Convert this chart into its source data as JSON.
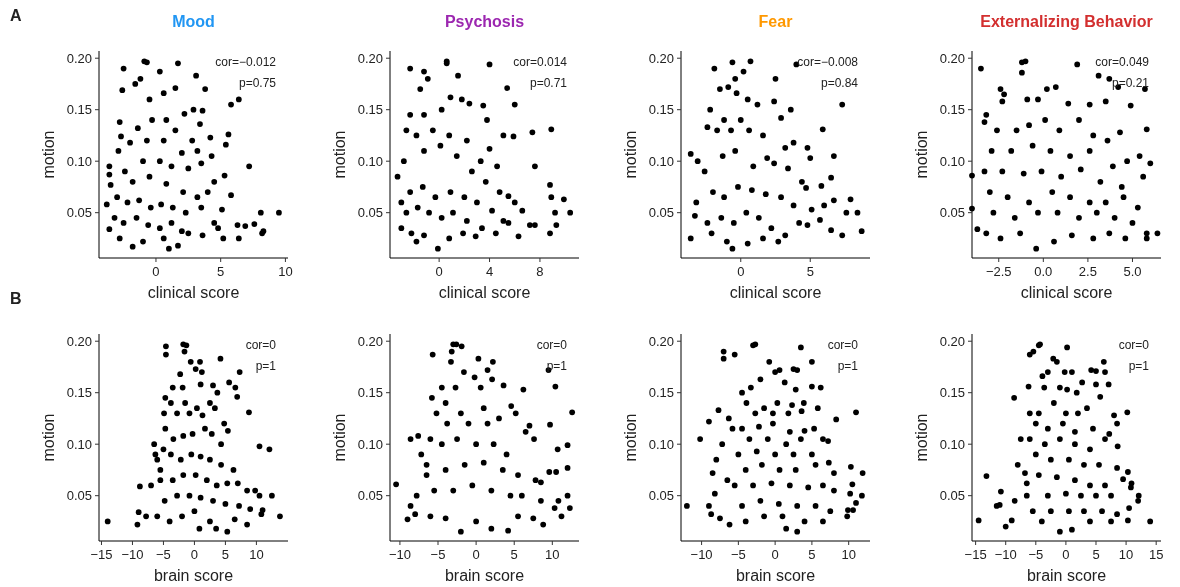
{
  "chart_data": [
    {
      "type": "scatter",
      "title": "Mood",
      "xlabel": "clinical score",
      "ylabel": "motion",
      "marker": "circle",
      "xlim": [
        -4.4,
        10.2
      ],
      "ylim": [
        0.006,
        0.207
      ],
      "xticks": [
        0,
        5,
        10
      ],
      "yticks": [
        {
          "value": 0.05,
          "label": "0.05"
        },
        {
          "value": 0.1,
          "label": "0.10"
        },
        {
          "value": 0.15,
          "label": "0.15"
        },
        {
          "value": 0.2,
          "label": "0.20"
        }
      ],
      "annotations": [
        "A",
        "cor=−0.012",
        "p=0.75"
      ],
      "series": [
        {
          "color": "#000000",
          "x": [
            -2.5,
            -0.9,
            -0.7,
            0.3,
            1.7,
            3.1,
            3.8,
            6.4,
            5.8,
            7.2,
            9.5,
            8.1,
            8.3,
            8.2,
            7.6,
            6.9,
            6.3,
            6.4,
            5.2,
            -3.8,
            -3.6,
            -3.6,
            -3.5,
            -3.6,
            1.0,
            1.7,
            -1.8,
            5.6,
            5.4,
            4.2,
            4.3,
            4.5,
            5.3,
            5.8,
            5.1,
            2.9,
            3.4,
            3.6,
            2.2,
            1.5,
            0.6,
            -0.5,
            -1.6,
            -1.2,
            -2.6,
            -2.8,
            -2.7,
            -2.9,
            -1.4,
            -0.3,
            0.8,
            1.5,
            2.8,
            3.2,
            2.0,
            0.6,
            -0.7,
            -2.0,
            -1.0,
            0.3,
            1.2,
            2.5,
            3.5,
            -2.4,
            -1.8,
            -0.5,
            0.8,
            2.1,
            3.2,
            4.0,
            -3.0,
            -2.2,
            -1.3,
            -0.4,
            0.4,
            1.3,
            2.3,
            3.5,
            4.5,
            -3.2,
            -2.5,
            -1.5,
            -0.6,
            0.3,
            1.2,
            2.5,
            3.6,
            -2.8,
            -1.0,
            0.6,
            2.0,
            4.8
          ],
          "values": [
            0.19,
            0.197,
            0.196,
            0.187,
            0.195,
            0.183,
            0.17,
            0.16,
            0.155,
            0.095,
            0.05,
            0.05,
            0.032,
            0.03,
            0.039,
            0.037,
            0.038,
            0.025,
            0.025,
            0.058,
            0.095,
            0.087,
            0.077,
            0.034,
            0.015,
            0.018,
            0.017,
            0.126,
            0.116,
            0.123,
            0.105,
            0.08,
            0.086,
            0.067,
            0.053,
            0.15,
            0.136,
            0.149,
            0.146,
            0.171,
            0.166,
            0.16,
            0.175,
            0.18,
            0.169,
            0.138,
            0.124,
            0.11,
            0.132,
            0.14,
            0.14,
            0.13,
            0.12,
            0.11,
            0.108,
            0.12,
            0.12,
            0.118,
            0.1,
            0.1,
            0.095,
            0.093,
            0.098,
            0.09,
            0.08,
            0.085,
            0.078,
            0.07,
            0.065,
            0.07,
            0.065,
            0.06,
            0.062,
            0.055,
            0.058,
            0.055,
            0.05,
            0.055,
            0.04,
            0.045,
            0.04,
            0.045,
            0.038,
            0.035,
            0.04,
            0.03,
            0.028,
            0.025,
            0.022,
            0.025,
            0.032,
            0.035
          ]
        }
      ]
    },
    {
      "type": "scatter",
      "title": "Psychosis",
      "xlabel": "clinical score",
      "ylabel": "motion",
      "marker": "circle",
      "xlim": [
        -3.9,
        11.1
      ],
      "ylim": [
        0.006,
        0.207
      ],
      "xticks": [
        0,
        4,
        8
      ],
      "yticks": [
        {
          "value": 0.05,
          "label": "0.05"
        },
        {
          "value": 0.1,
          "label": "0.10"
        },
        {
          "value": 0.15,
          "label": "0.15"
        },
        {
          "value": 0.2,
          "label": "0.20"
        }
      ],
      "annotations": [
        "cor=0.014",
        "p=0.71"
      ],
      "series": [
        {
          "color": "#000000",
          "x": [
            -2.3,
            -1.2,
            0.6,
            0.6,
            4.0,
            1.5,
            -0.9,
            5.4,
            -1.5,
            0.9,
            2.4,
            3.5,
            6.0,
            1.8,
            -2.3,
            3.8,
            -1.2,
            0.2,
            7.4,
            8.9,
            5.9,
            5.1,
            4.0,
            -2.6,
            -1.8,
            -0.5,
            0.8,
            2.2,
            3.3,
            4.6,
            7.6,
            -3.3,
            -2.8,
            -1.2,
            0.1,
            1.4,
            2.6,
            3.7,
            4.8,
            5.5,
            8.8,
            8.9,
            9.9,
            10.4,
            9.2,
            9.3,
            8.8,
            7.6,
            7.2,
            6.6,
            6.0,
            6.3,
            5.1,
            4.2,
            3.0,
            2.0,
            0.9,
            -0.3,
            -1.3,
            -2.3,
            -3.0,
            -2.6,
            -1.7,
            -0.8,
            0.2,
            1.1,
            2.2,
            3.4,
            4.5,
            -3.0,
            -2.2,
            -1.2,
            -0.1,
            0.8,
            1.9,
            2.9,
            -1.8,
            5.5
          ],
          "values": [
            0.19,
            0.187,
            0.197,
            0.195,
            0.194,
            0.183,
            0.18,
            0.171,
            0.17,
            0.162,
            0.156,
            0.154,
            0.155,
            0.16,
            0.145,
            0.14,
            0.145,
            0.15,
            0.128,
            0.131,
            0.124,
            0.125,
            0.112,
            0.13,
            0.125,
            0.13,
            0.125,
            0.12,
            0.1,
            0.095,
            0.095,
            0.085,
            0.1,
            0.11,
            0.115,
            0.105,
            0.09,
            0.08,
            0.07,
            0.066,
            0.077,
            0.065,
            0.063,
            0.05,
            0.05,
            0.038,
            0.03,
            0.038,
            0.038,
            0.052,
            0.06,
            0.027,
            0.042,
            0.052,
            0.06,
            0.065,
            0.07,
            0.065,
            0.075,
            0.07,
            0.06,
            0.05,
            0.055,
            0.05,
            0.045,
            0.05,
            0.042,
            0.035,
            0.03,
            0.035,
            0.03,
            0.028,
            0.015,
            0.025,
            0.03,
            0.027,
            0.022,
            0.04
          ]
        }
      ]
    },
    {
      "type": "scatter",
      "title": "Fear",
      "xlabel": "clinical score",
      "ylabel": "motion",
      "marker": "circle",
      "xlim": [
        -4.3,
        9.3
      ],
      "ylim": [
        0.006,
        0.207
      ],
      "xticks": [
        0,
        5
      ],
      "yticks": [
        {
          "value": 0.05,
          "label": "0.05"
        },
        {
          "value": 0.1,
          "label": "0.10"
        },
        {
          "value": 0.15,
          "label": "0.15"
        },
        {
          "value": 0.2,
          "label": "0.20"
        }
      ],
      "annotations": [
        "cor=−0.008",
        "p=0.84"
      ],
      "series": [
        {
          "color": "#000000",
          "x": [
            -3.6,
            -1.9,
            -0.6,
            0.7,
            4.0,
            0.2,
            -0.4,
            2.5,
            -1.5,
            -0.9,
            -0.3,
            0.5,
            2.4,
            1.2,
            3.6,
            7.3,
            -2.2,
            -1.2,
            0.0,
            2.9,
            -2.4,
            -1.7,
            -0.7,
            0.6,
            1.6,
            3.2,
            3.8,
            5.9,
            5.0,
            4.8,
            6.7,
            -3.1,
            -2.6,
            -1.3,
            -0.4,
            0.9,
            1.9,
            2.4,
            3.4,
            4.4,
            4.7,
            5.8,
            6.5,
            -3.2,
            -2.0,
            -1.2,
            -0.2,
            0.8,
            1.8,
            2.9,
            3.8,
            5.1,
            6.0,
            6.7,
            7.9,
            8.4,
            7.6,
            8.7,
            7.3,
            6.5,
            5.7,
            4.8,
            -3.6,
            -3.3,
            -2.4,
            -1.4,
            -0.5,
            0.4,
            1.3,
            2.2,
            3.2,
            -2.1,
            -1.0,
            -0.6,
            0.5,
            1.6,
            2.7,
            4.2
          ],
          "values": [
            0.107,
            0.19,
            0.196,
            0.197,
            0.194,
            0.187,
            0.18,
            0.18,
            0.17,
            0.172,
            0.166,
            0.16,
            0.158,
            0.155,
            0.15,
            0.155,
            0.15,
            0.14,
            0.14,
            0.142,
            0.133,
            0.13,
            0.13,
            0.13,
            0.125,
            0.113,
            0.118,
            0.131,
            0.103,
            0.113,
            0.105,
            0.1,
            0.09,
            0.105,
            0.11,
            0.095,
            0.103,
            0.098,
            0.093,
            0.08,
            0.074,
            0.076,
            0.084,
            0.06,
            0.07,
            0.065,
            0.075,
            0.072,
            0.068,
            0.065,
            0.057,
            0.053,
            0.057,
            0.062,
            0.063,
            0.05,
            0.05,
            0.032,
            0.028,
            0.033,
            0.043,
            0.038,
            0.025,
            0.047,
            0.04,
            0.045,
            0.04,
            0.05,
            0.045,
            0.035,
            0.028,
            0.03,
            0.022,
            0.015,
            0.02,
            0.025,
            0.022,
            0.04
          ]
        }
      ]
    },
    {
      "type": "scatter",
      "title": "Externalizing Behavior",
      "xlabel": "clinical score",
      "ylabel": "motion",
      "marker": "circle",
      "xlim": [
        -4.0,
        6.6
      ],
      "ylim": [
        0.006,
        0.207
      ],
      "xticks": [
        -2.5,
        {
          "value": 0,
          "label": "0.0"
        },
        2.5,
        {
          "value": 5,
          "label": "5.0"
        }
      ],
      "yticks": [
        {
          "value": 0.05,
          "label": "0.05"
        },
        {
          "value": 0.1,
          "label": "0.10"
        },
        {
          "value": 0.15,
          "label": "0.15"
        },
        {
          "value": 0.2,
          "label": "0.20"
        }
      ],
      "annotations": [
        "cor=0.049",
        "p=0.21"
      ],
      "series": [
        {
          "color": "#000000",
          "x": [
            -4.0,
            -4.0,
            -3.7,
            -3.5,
            -3.3,
            -2.4,
            -2.2,
            -2.3,
            -1.2,
            -1.0,
            -1.2,
            -0.9,
            -0.3,
            0.2,
            0.7,
            1.4,
            1.9,
            3.1,
            3.7,
            4.2,
            3.5,
            4.9,
            5.7,
            2.6,
            -3.2,
            -2.6,
            -1.5,
            -0.8,
            0.1,
            0.9,
            2.0,
            2.8,
            3.6,
            4.3,
            5.8,
            6.0,
            5.4,
            4.7,
            3.9,
            2.6,
            1.5,
            0.4,
            -0.6,
            -1.8,
            -2.9,
            -3.3,
            -2.3,
            -1.1,
            -0.1,
            1.0,
            2.1,
            3.2,
            4.4,
            5.6,
            -3.0,
            -2.0,
            -0.8,
            0.5,
            1.5,
            2.6,
            3.5,
            4.5,
            5.3,
            -2.8,
            -1.6,
            -0.3,
            0.8,
            2.0,
            3.0,
            4.0,
            5.0,
            5.8,
            6.4,
            -3.2,
            -2.4,
            -1.3,
            -0.4,
            0.6,
            1.6,
            2.8,
            3.7,
            4.6,
            5.8
          ],
          "values": [
            0.086,
            0.054,
            0.034,
            0.19,
            0.138,
            0.17,
            0.165,
            0.158,
            0.196,
            0.197,
            0.186,
            0.16,
            0.16,
            0.17,
            0.172,
            0.156,
            0.194,
            0.183,
            0.18,
            0.172,
            0.158,
            0.154,
            0.17,
            0.155,
            0.145,
            0.13,
            0.13,
            0.135,
            0.14,
            0.13,
            0.14,
            0.125,
            0.12,
            0.128,
            0.131,
            0.098,
            0.105,
            0.1,
            0.095,
            0.11,
            0.105,
            0.11,
            0.115,
            0.11,
            0.11,
            0.09,
            0.09,
            0.088,
            0.09,
            0.085,
            0.092,
            0.08,
            0.075,
            0.085,
            0.07,
            0.065,
            0.06,
            0.07,
            0.065,
            0.06,
            0.06,
            0.065,
            0.055,
            0.05,
            0.045,
            0.05,
            0.05,
            0.045,
            0.05,
            0.045,
            0.04,
            0.03,
            0.03,
            0.03,
            0.025,
            0.03,
            0.015,
            0.022,
            0.028,
            0.025,
            0.03,
            0.025,
            0.025
          ]
        }
      ]
    },
    {
      "type": "scatter",
      "xlabel": "brain score",
      "ylabel": "motion",
      "marker": "circle",
      "xlim": [
        -15.4,
        15.1
      ],
      "ylim": [
        0.006,
        0.207
      ],
      "xticks": [
        -15,
        -10,
        -5,
        0,
        5,
        10
      ],
      "yticks": [
        {
          "value": 0.05,
          "label": "0.05"
        },
        {
          "value": 0.1,
          "label": "0.10"
        },
        {
          "value": 0.15,
          "label": "0.15"
        },
        {
          "value": 0.2,
          "label": "0.20"
        }
      ],
      "annotations": [
        "B",
        "cor=0",
        "p=1"
      ],
      "series": [
        {
          "color": "#000000",
          "x": [
            -14,
            -9.2,
            -9.0,
            -8.8,
            -7.8,
            -7.0,
            -6.5,
            -6.3,
            -6.0,
            -5.5,
            -4.6,
            -4.6,
            -1.8,
            -1.3,
            -1.6,
            -0.6,
            0.9,
            4.2,
            0.2,
            -2.3,
            1.2,
            7.3,
            5.6,
            6.6,
            6.9,
            -3.5,
            -1.9,
            1.0,
            3.0,
            3.7,
            -4.7,
            -3.8,
            -1.5,
            0.4,
            2.5,
            8.8,
            -4.9,
            -2.8,
            -0.8,
            1.3,
            3.3,
            4.8,
            5.4,
            -4.7,
            -3.4,
            -1.8,
            -0.3,
            1.7,
            2.8,
            4.3,
            10.5,
            12.1,
            -5.0,
            -3.8,
            -2.2,
            -0.5,
            1.0,
            2.5,
            4.3,
            6.3,
            -5.5,
            -3.5,
            -1.8,
            0.2,
            2.0,
            3.6,
            5.3,
            7.0,
            8.5,
            9.8,
            10.5,
            12.5,
            -4.8,
            -2.8,
            -0.8,
            1.0,
            3.0,
            5.0,
            7.2,
            9.0,
            11.0,
            10.8,
            13.8,
            -6.0,
            -4.0,
            -2.0,
            0.0,
            0.8,
            2.5,
            3.5,
            5.3,
            6.5,
            8.5
          ],
          "values": [
            0.025,
            0.022,
            0.034,
            0.059,
            0.03,
            0.06,
            0.1,
            0.09,
            0.085,
            0.075,
            0.195,
            0.187,
            0.197,
            0.196,
            0.19,
            0.18,
            0.18,
            0.183,
            0.173,
            0.168,
            0.17,
            0.17,
            0.16,
            0.155,
            0.146,
            0.155,
            0.155,
            0.158,
            0.157,
            0.15,
            0.145,
            0.14,
            0.14,
            0.135,
            0.14,
            0.131,
            0.13,
            0.13,
            0.13,
            0.128,
            0.135,
            0.12,
            0.113,
            0.115,
            0.105,
            0.108,
            0.11,
            0.115,
            0.11,
            0.1,
            0.098,
            0.095,
            0.095,
            0.09,
            0.085,
            0.09,
            0.088,
            0.085,
            0.08,
            0.075,
            0.065,
            0.065,
            0.07,
            0.07,
            0.065,
            0.06,
            0.062,
            0.062,
            0.055,
            0.055,
            0.05,
            0.05,
            0.045,
            0.05,
            0.05,
            0.048,
            0.045,
            0.042,
            0.04,
            0.037,
            0.036,
            0.032,
            0.03,
            0.03,
            0.025,
            0.03,
            0.035,
            0.018,
            0.025,
            0.018,
            0.015,
            0.027,
            0.022
          ]
        }
      ]
    },
    {
      "type": "scatter",
      "xlabel": "brain score",
      "ylabel": "motion",
      "marker": "circle",
      "xlim": [
        -11.3,
        13.5
      ],
      "ylim": [
        0.006,
        0.207
      ],
      "xticks": [
        -10,
        -5,
        0,
        5,
        10
      ],
      "yticks": [
        {
          "value": 0.05,
          "label": "0.05"
        },
        {
          "value": 0.1,
          "label": "0.10"
        },
        {
          "value": 0.15,
          "label": "0.15"
        },
        {
          "value": 0.2,
          "label": "0.20"
        }
      ],
      "annotations": [
        "cor=0",
        "p=1"
      ],
      "series": [
        {
          "color": "#000000",
          "x": [
            -10.5,
            -9.0,
            -8.6,
            -8.6,
            -7.6,
            -7.2,
            -6.5,
            -5.8,
            -5.7,
            -5.2,
            -4.5,
            -3.0,
            -2.6,
            -3.2,
            -1.9,
            -3.3,
            0.3,
            2.2,
            -1.6,
            1.5,
            2.1,
            -0.2,
            0.6,
            3.6,
            6.2,
            -2.7,
            -4.0,
            -2.0,
            1.0,
            4.6,
            5.2,
            9.5,
            10.4,
            12.6,
            9.7,
            -3.8,
            -1.0,
            1.5,
            3.0,
            6.5,
            7.0,
            7.6,
            10.7,
            12.0,
            12.0,
            9.6,
            10.5,
            -6.0,
            -4.5,
            -2.5,
            0.0,
            2.3,
            4.0,
            -6.5,
            -4.0,
            -1.5,
            1.0,
            3.5,
            5.5,
            7.8,
            8.5,
            -7.8,
            -5.5,
            -3.0,
            -0.5,
            2.0,
            4.5,
            6.0,
            8.5,
            10.8,
            12.0,
            12.3,
            11.2,
            10.3,
            8.8,
            -8.0,
            -6.0,
            -4.0,
            -2.0,
            0.0,
            2.0,
            4.2,
            5.5,
            7.5
          ],
          "values": [
            0.061,
            0.027,
            0.04,
            0.105,
            0.108,
            0.09,
            0.08,
            0.145,
            0.187,
            0.13,
            0.155,
            0.197,
            0.197,
            0.19,
            0.195,
            0.18,
            0.183,
            0.18,
            0.17,
            0.172,
            0.163,
            0.165,
            0.155,
            0.157,
            0.153,
            0.155,
            0.14,
            0.13,
            0.135,
            0.137,
            0.13,
            0.172,
            0.156,
            0.131,
            0.119,
            0.12,
            0.12,
            0.12,
            0.125,
            0.112,
            0.118,
            0.105,
            0.095,
            0.099,
            0.077,
            0.073,
            0.073,
            0.105,
            0.1,
            0.105,
            0.1,
            0.1,
            0.09,
            0.07,
            0.075,
            0.08,
            0.082,
            0.075,
            0.07,
            0.065,
            0.063,
            0.05,
            0.055,
            0.055,
            0.06,
            0.055,
            0.05,
            0.05,
            0.045,
            0.045,
            0.05,
            0.038,
            0.03,
            0.038,
            0.022,
            0.032,
            0.03,
            0.028,
            0.015,
            0.025,
            0.018,
            0.016,
            0.03,
            0.028
          ]
        }
      ]
    },
    {
      "type": "scatter",
      "xlabel": "brain score",
      "ylabel": "motion",
      "marker": "circle",
      "xlim": [
        -12.8,
        12.9
      ],
      "ylim": [
        0.006,
        0.207
      ],
      "xticks": [
        -10,
        -5,
        0,
        5,
        10
      ],
      "yticks": [
        {
          "value": 0.05,
          "label": "0.05"
        },
        {
          "value": 0.1,
          "label": "0.10"
        },
        {
          "value": 0.15,
          "label": "0.15"
        },
        {
          "value": 0.2,
          "label": "0.20"
        }
      ],
      "annotations": [
        "cor=0",
        "p=1"
      ],
      "series": [
        {
          "color": "#000000",
          "x": [
            -12,
            -10.2,
            -9.0,
            -9.0,
            -8.7,
            -8.5,
            -8.2,
            -8.0,
            -7.7,
            -7.0,
            -7.0,
            -5.5,
            -6.3,
            -7.2,
            -5.8,
            -6.5,
            -7.5,
            -6.2,
            -4.5,
            -3.0,
            -2.7,
            3.5,
            -0.8,
            5.0,
            0.0,
            0.6,
            2.5,
            3.0,
            1.3,
            -2.0,
            -3.3,
            2.8,
            5.0,
            6.2,
            -3.9,
            -1.5,
            0.3,
            2.3,
            3.9,
            5.8,
            -2.7,
            -0.3,
            1.8,
            3.6,
            -4.5,
            -2.2,
            -0.3,
            2.0,
            4.0,
            5.3,
            8.3,
            11.0,
            -3.5,
            -1.0,
            1.5,
            3.5,
            6.5,
            7.2,
            -5.0,
            -2.5,
            0.0,
            2.5,
            5.0,
            -4.0,
            -1.8,
            0.6,
            2.8,
            5.5,
            7.3,
            8.0,
            10.3,
            11.9,
            10.5,
            -5.5,
            -3.0,
            -0.5,
            2.0,
            4.5,
            6.5,
            8.0,
            10.2,
            11.8,
            11.0,
            10.6,
            9.9,
            9.8,
            -4.5,
            -2.0,
            0.5,
            3.0,
            5.5,
            7.5,
            -4.0,
            -1.5,
            1.0,
            1.5,
            3.0,
            4.0,
            6.5
          ],
          "values": [
            0.04,
            0.105,
            0.04,
            0.122,
            0.032,
            0.072,
            0.052,
            0.085,
            0.133,
            0.19,
            0.183,
            0.187,
            0.125,
            0.1,
            0.115,
            0.065,
            0.028,
            0.022,
            0.15,
            0.196,
            0.197,
            0.194,
            0.18,
            0.18,
            0.17,
            0.172,
            0.173,
            0.172,
            0.16,
            0.163,
            0.155,
            0.153,
            0.156,
            0.155,
            0.14,
            0.135,
            0.14,
            0.138,
            0.14,
            0.135,
            0.13,
            0.13,
            0.13,
            0.132,
            0.115,
            0.117,
            0.12,
            0.112,
            0.113,
            0.115,
            0.124,
            0.131,
            0.105,
            0.105,
            0.1,
            0.105,
            0.105,
            0.103,
            0.09,
            0.093,
            0.09,
            0.09,
            0.09,
            0.075,
            0.08,
            0.075,
            0.075,
            0.08,
            0.082,
            0.072,
            0.078,
            0.072,
            0.061,
            0.06,
            0.06,
            0.062,
            0.06,
            0.058,
            0.06,
            0.055,
            0.052,
            0.05,
            0.043,
            0.036,
            0.036,
            0.03,
            0.04,
            0.045,
            0.042,
            0.04,
            0.04,
            0.035,
            0.025,
            0.03,
            0.03,
            0.018,
            0.015,
            0.025,
            0.025
          ]
        }
      ]
    },
    {
      "type": "scatter",
      "xlabel": "brain score",
      "ylabel": "motion",
      "marker": "circle",
      "xlim": [
        -15.6,
        15.8
      ],
      "ylim": [
        0.006,
        0.207
      ],
      "xticks": [
        -15,
        -10,
        -5,
        0,
        5,
        10,
        15
      ],
      "yticks": [
        {
          "value": 0.05,
          "label": "0.05"
        },
        {
          "value": 0.1,
          "label": "0.10"
        },
        {
          "value": 0.15,
          "label": "0.15"
        },
        {
          "value": 0.2,
          "label": "0.20"
        }
      ],
      "annotations": [
        "cor=0",
        "p=1"
      ],
      "series": [
        {
          "color": "#000000",
          "x": [
            -14.5,
            -13.2,
            -11.5,
            -10.8,
            -11,
            -10,
            -9.0,
            -8.5,
            -8.6,
            -8.0,
            -7.5,
            -6.8,
            -6.5,
            -6.0,
            -5.4,
            -4.5,
            -4.3,
            -3.9,
            -3.0,
            -2.1,
            -1.5,
            0.2,
            -0.2,
            1.0,
            6.3,
            6.5,
            4.2,
            5.0,
            7.1,
            2.7,
            -6.2,
            -3.6,
            -1.0,
            0.2,
            1.8,
            5.0,
            5.7,
            -6.0,
            -4.5,
            -2.0,
            0.0,
            2.0,
            3.5,
            -5.0,
            -3.0,
            -0.5,
            1.5,
            4.5,
            8.0,
            8.5,
            10.2,
            -6.0,
            -3.5,
            -1.0,
            1.5,
            4.0,
            6.5,
            7.2,
            8.6,
            -5.0,
            -2.5,
            0.5,
            3.0,
            5.5,
            8.5,
            10.3,
            9.5,
            -4.5,
            -1.5,
            1.5,
            4.0,
            6.5,
            10.9,
            10.8,
            -6.5,
            -3.0,
            0.0,
            2.5,
            5.0,
            7.5,
            12.1,
            12.0,
            10.5,
            -5.5,
            -2.5,
            0.5,
            3.0,
            6.0,
            8.5,
            -4.0,
            -1.0,
            1.0,
            4.0,
            7.5,
            10.3,
            14.0
          ],
          "values": [
            0.026,
            0.069,
            0.04,
            0.054,
            0.041,
            0.02,
            0.026,
            0.045,
            0.145,
            0.08,
            0.105,
            0.072,
            0.062,
            0.187,
            0.19,
            0.196,
            0.197,
            0.166,
            0.17,
            0.183,
            0.18,
            0.194,
            0.17,
            0.17,
            0.18,
            0.17,
            0.172,
            0.171,
            0.158,
            0.16,
            0.156,
            0.155,
            0.155,
            0.153,
            0.15,
            0.158,
            0.146,
            0.13,
            0.13,
            0.14,
            0.13,
            0.13,
            0.135,
            0.12,
            0.115,
            0.12,
            0.112,
            0.115,
            0.128,
            0.12,
            0.131,
            0.105,
            0.1,
            0.105,
            0.1,
            0.095,
            0.105,
            0.11,
            0.098,
            0.09,
            0.085,
            0.085,
            0.08,
            0.08,
            0.077,
            0.073,
            0.066,
            0.07,
            0.068,
            0.065,
            0.06,
            0.06,
            0.062,
            0.058,
            0.05,
            0.05,
            0.052,
            0.05,
            0.05,
            0.05,
            0.05,
            0.045,
            0.038,
            0.035,
            0.035,
            0.035,
            0.035,
            0.035,
            0.032,
            0.025,
            0.015,
            0.017,
            0.025,
            0.025,
            0.026,
            0.025
          ]
        }
      ]
    }
  ]
}
